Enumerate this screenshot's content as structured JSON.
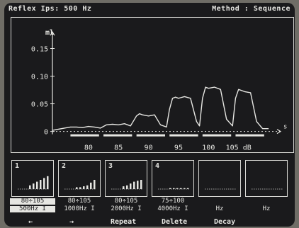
{
  "title_bar": {
    "left": "Reflex Ips: 500 Hz",
    "right": "Method : Sequence"
  },
  "chart_data": {
    "type": "line",
    "ylabel": "ml",
    "yticks": [
      0,
      0.05,
      0.1,
      0.15
    ],
    "ytick_labels": [
      "0",
      "0.05",
      "0.10",
      "0.15"
    ],
    "ylim": [
      -0.012,
      0.18
    ],
    "xticks": [
      80,
      85,
      90,
      95,
      100,
      105
    ],
    "xtick_labels": [
      "80",
      "85",
      "90",
      "95",
      "100",
      "105 dB"
    ],
    "xlim": [
      74,
      112
    ],
    "x_arrow_label": "s",
    "stimulus_segments": [
      [
        77,
        82
      ],
      [
        82.5,
        87.5
      ],
      [
        88,
        93
      ],
      [
        93.5,
        98.5
      ],
      [
        99,
        104
      ],
      [
        104.5,
        109.5
      ]
    ],
    "series": [
      {
        "x": [
          74,
          75,
          76,
          77,
          78,
          79,
          80,
          81,
          82,
          83,
          84,
          85,
          86,
          87,
          88,
          88.5,
          89,
          90,
          91,
          92,
          93,
          93.5,
          94,
          94.5,
          95,
          96,
          97,
          98,
          98.5,
          99,
          99.5,
          100,
          101,
          102,
          103,
          104,
          104.5,
          105,
          105.5,
          106,
          107,
          108,
          109,
          110
        ],
        "y": [
          0.002,
          0.004,
          0.006,
          0.008,
          0.008,
          0.007,
          0.009,
          0.008,
          0.006,
          0.012,
          0.013,
          0.012,
          0.014,
          0.01,
          0.028,
          0.032,
          0.03,
          0.028,
          0.03,
          0.012,
          0.008,
          0.04,
          0.06,
          0.062,
          0.06,
          0.063,
          0.06,
          0.018,
          0.01,
          0.06,
          0.08,
          0.078,
          0.08,
          0.076,
          0.022,
          0.01,
          0.06,
          0.076,
          0.074,
          0.072,
          0.07,
          0.018,
          0.005,
          0.005
        ]
      }
    ]
  },
  "thumbnails": [
    {
      "num": "1",
      "label1": "80÷105",
      "label2": "500Hz I",
      "selected": true,
      "bars": [
        0.2,
        0.3,
        0.4,
        0.5,
        0.6,
        0.7
      ]
    },
    {
      "num": "2",
      "label1": "80÷105",
      "label2": "1000Hz I",
      "selected": false,
      "bars": [
        0.1,
        0.1,
        0.15,
        0.2,
        0.35,
        0.5
      ]
    },
    {
      "num": "3",
      "label1": "80÷105",
      "label2": "2000Hz I",
      "selected": false,
      "bars": [
        0.15,
        0.2,
        0.3,
        0.4,
        0.45,
        0.5
      ]
    },
    {
      "num": "4",
      "label1": "75÷100",
      "label2": "4000Hz I",
      "selected": false,
      "bars": [
        0.05,
        0.05,
        0.05,
        0.05,
        0.05,
        0.05
      ]
    },
    {
      "num": "",
      "label1": "",
      "label2": "Hz",
      "selected": false,
      "bars": []
    },
    {
      "num": "",
      "label1": "",
      "label2": "Hz",
      "selected": false,
      "bars": []
    }
  ],
  "softkeys": {
    "left_arrow": "←",
    "right_arrow": "→",
    "repeat": "Repeat",
    "delete": "Delete",
    "decay": "Decay"
  }
}
